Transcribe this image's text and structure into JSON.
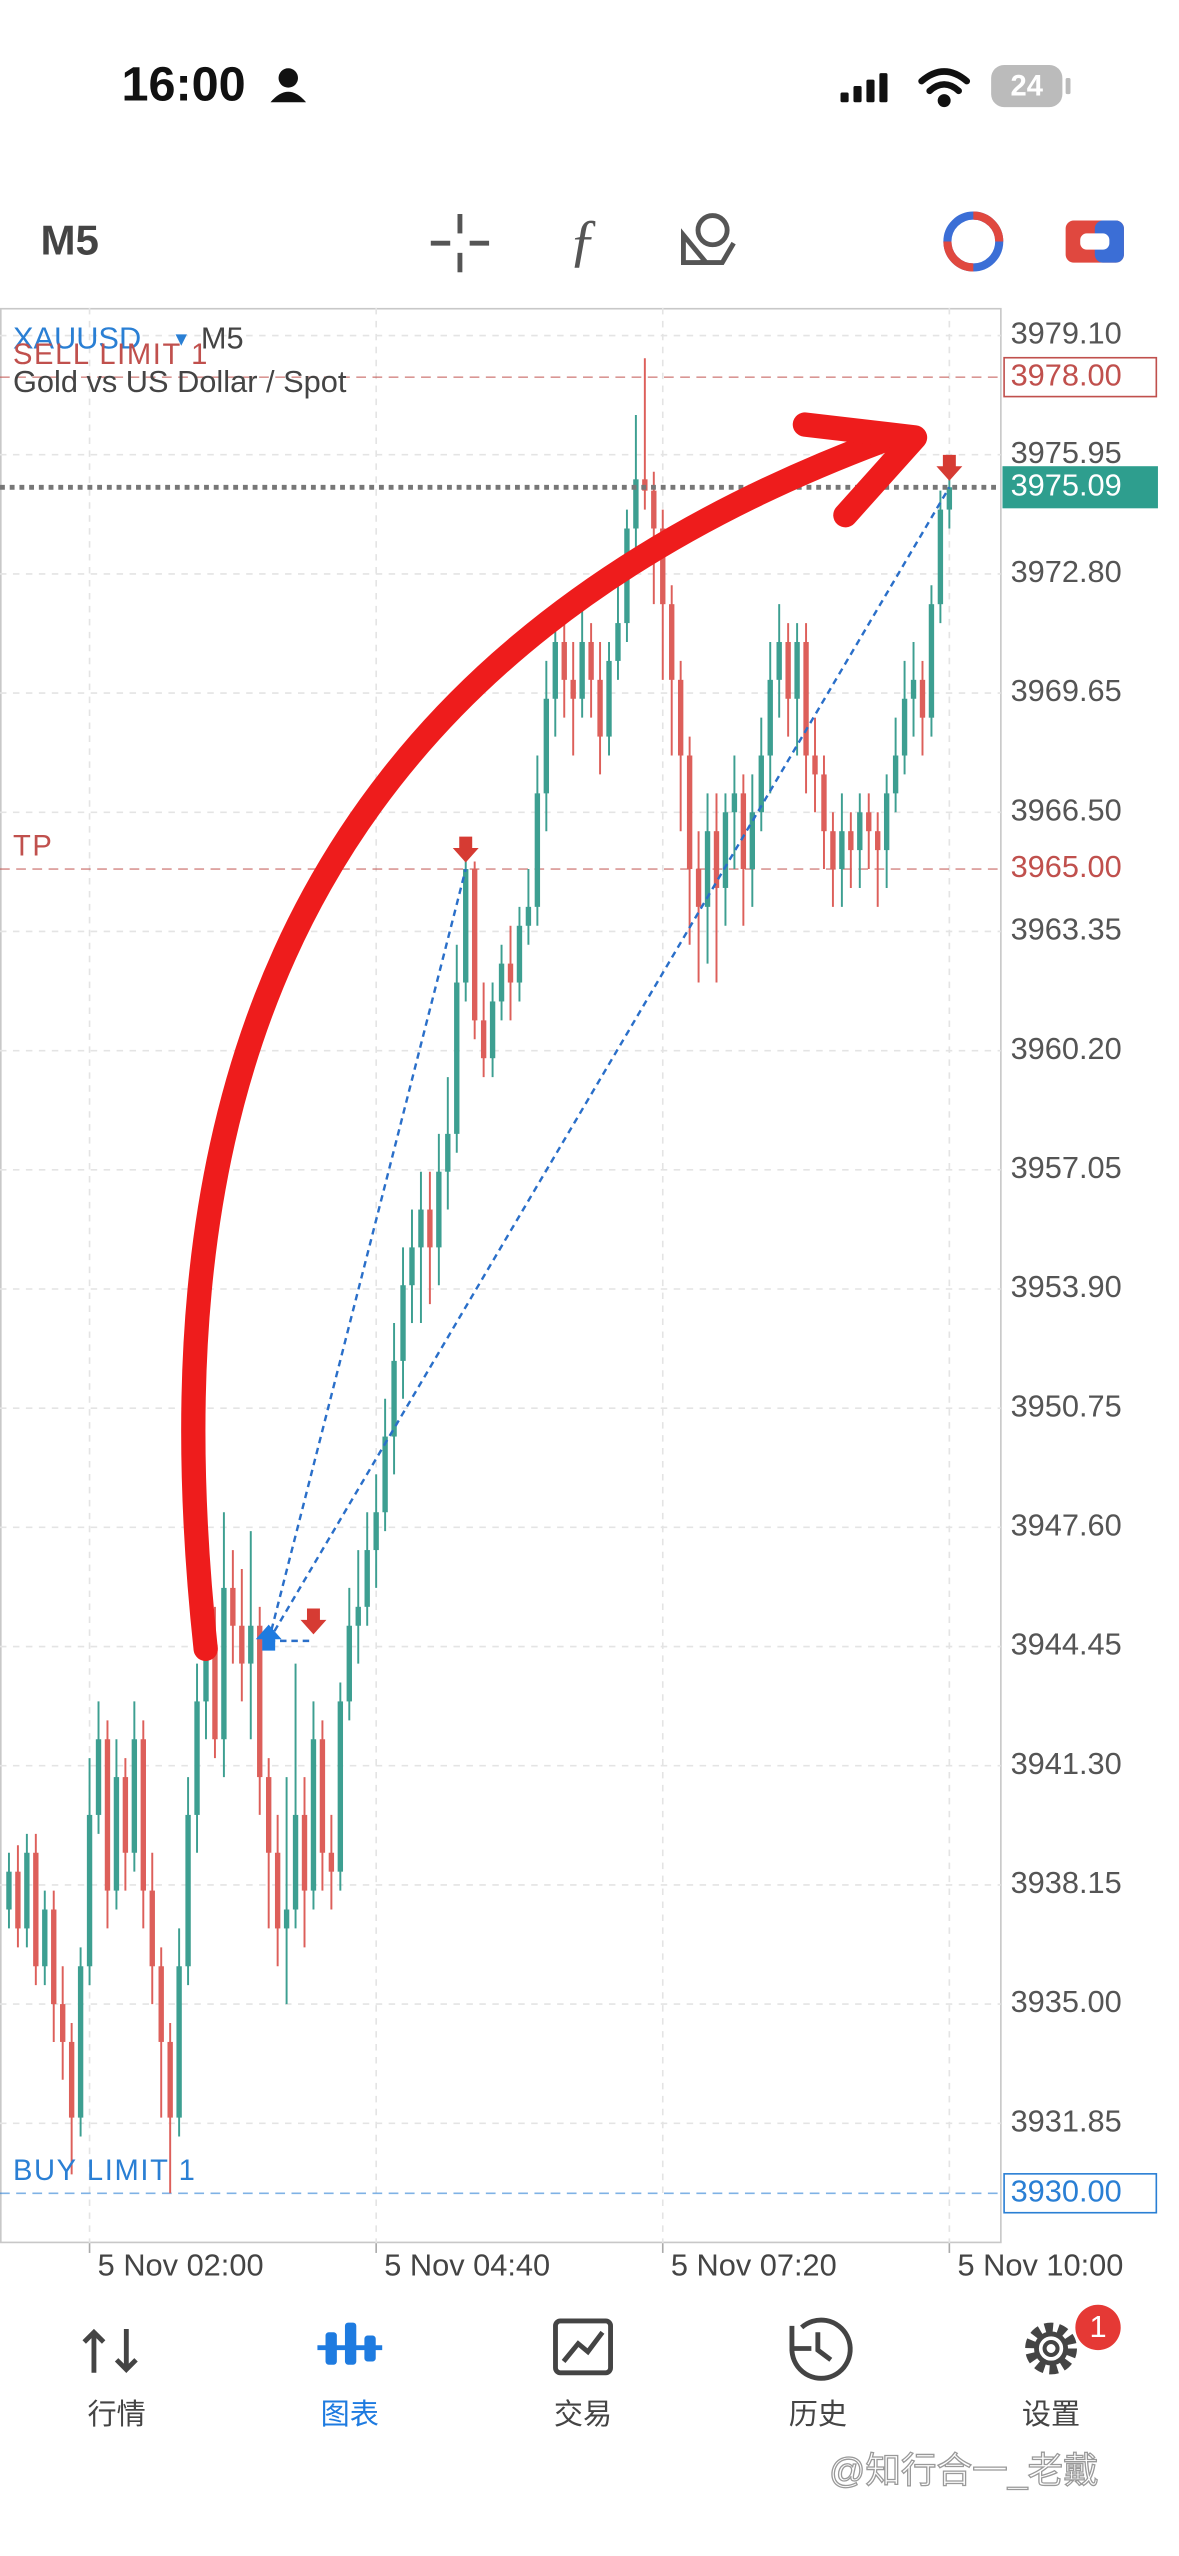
{
  "status_bar": {
    "time": "16:00",
    "battery": "24"
  },
  "toolbar": {
    "timeframe": "M5"
  },
  "chart_data": {
    "type": "candlestick",
    "symbol": "XAUUSD",
    "timeframe": "M5",
    "subtitle": "Gold vs US Dollar / Spot",
    "x": [
      -9,
      -8,
      -7,
      -6,
      -5,
      -4,
      -3,
      -2,
      -1,
      0,
      1,
      2,
      3,
      4,
      5,
      6,
      7,
      8,
      9,
      10,
      11,
      12,
      13,
      14,
      15,
      16,
      17,
      18,
      19,
      20,
      21,
      22,
      23,
      24,
      25,
      26,
      27,
      28,
      29,
      30,
      31,
      32,
      33,
      34,
      35,
      36,
      37,
      38,
      39,
      40,
      41,
      42,
      43,
      44,
      45,
      46,
      47,
      48,
      49,
      50,
      51,
      52,
      53,
      54,
      55,
      56,
      57,
      58,
      59,
      60,
      61,
      62,
      63,
      64,
      65,
      66,
      67,
      68,
      69,
      70,
      71,
      72,
      73,
      74,
      75,
      76,
      77,
      78,
      79,
      80,
      81,
      82,
      83,
      84,
      85,
      86,
      87,
      88,
      89,
      90,
      91,
      92,
      93,
      94,
      95,
      96
    ],
    "open": [
      3937.5,
      3938.5,
      3937,
      3939,
      3936,
      3937.5,
      3935,
      3934,
      3932,
      3936,
      3940,
      3942,
      3938,
      3941,
      3939,
      3942,
      3938,
      3936,
      3934,
      3932,
      3936,
      3940,
      3943,
      3944.5,
      3942,
      3946,
      3945,
      3944,
      3945,
      3941,
      3939,
      3937,
      3937.5,
      3940,
      3938,
      3942,
      3939,
      3938.5,
      3943,
      3945,
      3945.5,
      3947,
      3948,
      3950,
      3952,
      3954,
      3955,
      3956,
      3955,
      3957,
      3958,
      3962,
      3965,
      3961,
      3960,
      3961.5,
      3962.5,
      3962,
      3963.5,
      3964,
      3967,
      3969.5,
      3971,
      3970,
      3969.5,
      3971,
      3970,
      3968.5,
      3970.5,
      3971.5,
      3974,
      3975.3,
      3975,
      3974,
      3972,
      3970,
      3968,
      3965,
      3964,
      3966,
      3964.5,
      3966.5,
      3967,
      3965,
      3966.5,
      3968,
      3970,
      3971,
      3969.5,
      3971,
      3968,
      3967.5,
      3966,
      3965,
      3966,
      3965.5,
      3966.5,
      3966,
      3965.5,
      3967,
      3968,
      3969.5,
      3970,
      3969,
      3972,
      3974.5
    ],
    "high": [
      3939,
      3939.2,
      3939.5,
      3939.5,
      3938,
      3938,
      3936,
      3934.5,
      3936.5,
      3941.5,
      3943,
      3942.5,
      3942,
      3941.5,
      3943,
      3942.5,
      3939,
      3936.5,
      3934.5,
      3937,
      3941,
      3944,
      3945,
      3945.5,
      3948,
      3947,
      3946.5,
      3947.5,
      3945.5,
      3941.5,
      3940,
      3941,
      3944,
      3941,
      3943,
      3942.5,
      3940,
      3943.5,
      3946,
      3947,
      3948,
      3949,
      3951,
      3953,
      3955,
      3956,
      3957,
      3957,
      3958,
      3959.5,
      3963,
      3965.3,
      3965.2,
      3962,
      3962,
      3963,
      3963.5,
      3964,
      3965,
      3968,
      3970.5,
      3971.5,
      3971.5,
      3971,
      3972,
      3971.5,
      3971,
      3971,
      3972.5,
      3974.5,
      3977,
      3978.5,
      3975.5,
      3974.5,
      3972.5,
      3970.5,
      3968.5,
      3966,
      3967,
      3967,
      3967,
      3968,
      3967.5,
      3967.5,
      3969,
      3971,
      3972,
      3971.5,
      3971.5,
      3971.5,
      3969,
      3968,
      3966.5,
      3967,
      3966.5,
      3967,
      3967,
      3966.5,
      3967.5,
      3969,
      3970.5,
      3971,
      3970.5,
      3972.5,
      3975,
      3975.5
    ],
    "low": [
      3937,
      3936.5,
      3936.5,
      3935.5,
      3935.5,
      3934,
      3933,
      3930.5,
      3931.5,
      3935.5,
      3939.5,
      3937,
      3937.5,
      3938,
      3938.5,
      3937,
      3935,
      3932,
      3930,
      3931.5,
      3935.5,
      3939,
      3942,
      3941.5,
      3941,
      3944,
      3943,
      3942,
      3940,
      3937,
      3936,
      3935,
      3937,
      3936.5,
      3937.5,
      3938,
      3937.5,
      3938,
      3942.5,
      3944,
      3945,
      3946,
      3947.5,
      3949,
      3951,
      3953,
      3953,
      3953.5,
      3954,
      3956,
      3957.5,
      3961.5,
      3960.5,
      3959.5,
      3959.5,
      3961,
      3961,
      3961.5,
      3963,
      3963.5,
      3966,
      3968.5,
      3969,
      3968,
      3969,
      3969,
      3967.5,
      3968,
      3970,
      3971,
      3973.5,
      3974.5,
      3972,
      3970,
      3968,
      3966,
      3963,
      3962,
      3962.5,
      3962,
      3963.5,
      3965,
      3963.5,
      3964,
      3966,
      3967,
      3969,
      3968.5,
      3968,
      3967,
      3966.5,
      3965,
      3964,
      3964,
      3964.5,
      3964.5,
      3965,
      3964,
      3964.5,
      3966.5,
      3967.5,
      3968.5,
      3968,
      3968.5,
      3971.5,
      3974
    ],
    "close": [
      3938.5,
      3937,
      3939,
      3936,
      3937.5,
      3935,
      3934,
      3932,
      3936,
      3940,
      3942,
      3938,
      3941,
      3939,
      3942,
      3938,
      3936,
      3934,
      3932,
      3936,
      3940,
      3943,
      3944.5,
      3942,
      3946,
      3945,
      3944,
      3945,
      3941,
      3939,
      3937,
      3937.5,
      3940,
      3938,
      3942,
      3939,
      3938.5,
      3943,
      3945,
      3945.5,
      3947,
      3948,
      3950,
      3952,
      3954,
      3955,
      3956,
      3955,
      3957,
      3958,
      3962,
      3965,
      3961,
      3960,
      3961.5,
      3962.5,
      3962,
      3963.5,
      3964,
      3967,
      3969.5,
      3971,
      3970,
      3969.5,
      3971,
      3970,
      3968.5,
      3970.5,
      3971.5,
      3974,
      3975.3,
      3975,
      3974,
      3972,
      3970,
      3968,
      3965,
      3964,
      3966,
      3964.5,
      3966.5,
      3967,
      3965,
      3966.5,
      3968,
      3970,
      3971,
      3969.5,
      3971,
      3968,
      3967.5,
      3966,
      3965,
      3966,
      3965.5,
      3966.5,
      3966,
      3965.5,
      3967,
      3968,
      3969.5,
      3970,
      3969,
      3972,
      3974.5,
      3975.09
    ],
    "up_color": "#3d9f91",
    "down_color": "#dd5f5a",
    "xlim": [
      -10,
      101.75
    ],
    "xticks": [
      {
        "value": 0,
        "label": "5 Nov 02:00"
      },
      {
        "value": 32,
        "label": "5 Nov 04:40"
      },
      {
        "value": 64,
        "label": "5 Nov 07:20"
      },
      {
        "value": 96,
        "label": "5 Nov 10:00"
      }
    ],
    "ylim": [
      3928.68,
      3979.83
    ],
    "yticks": [
      {
        "value": 3979.1,
        "label": "3979.10"
      },
      3975.95,
      {
        "value": 3972.8,
        "label": "3972.80"
      },
      3969.65,
      {
        "value": 3966.5,
        "label": "3966.50"
      },
      3963.35,
      {
        "value": 3960.2,
        "label": "3960.20"
      },
      3957.05,
      {
        "value": 3953.9,
        "label": "3953.90"
      },
      3950.75,
      {
        "value": 3947.6,
        "label": "3947.60"
      },
      3944.45,
      {
        "value": 3941.3,
        "label": "3941.30"
      },
      3938.15,
      {
        "value": 3935,
        "label": "3935.00"
      },
      3931.85
    ],
    "grid": true,
    "orders": [
      {
        "label": "SELL LIMIT 1",
        "price": 3978,
        "price_label": "3978.00",
        "color": "#c0504d",
        "boxed": true
      },
      {
        "label": "TP",
        "price": 3965,
        "price_label": "3965.00",
        "color": "#c0504d",
        "boxed": false
      },
      {
        "label": "BUY LIMIT 1",
        "price": 3930,
        "price_label": "3930.00",
        "color": "#2a7fd4",
        "boxed": true
      }
    ],
    "bid": 3975.09,
    "bid_color": "#2e9e8e",
    "trades": [
      {
        "side": "buy",
        "x": 20,
        "price": 3944.6
      },
      {
        "side": "sell",
        "x": 25,
        "price": 3944.6
      },
      {
        "side": "sell",
        "x": 42,
        "price": 3965
      },
      {
        "side": "sell",
        "x": 96,
        "price": 3975.09
      }
    ]
  },
  "tab_bar": {
    "tabs": [
      "行情",
      "图表",
      "交易",
      "历史",
      "设置"
    ],
    "active": 1,
    "badge": "1"
  },
  "watermark": "@知行合一_老戴"
}
